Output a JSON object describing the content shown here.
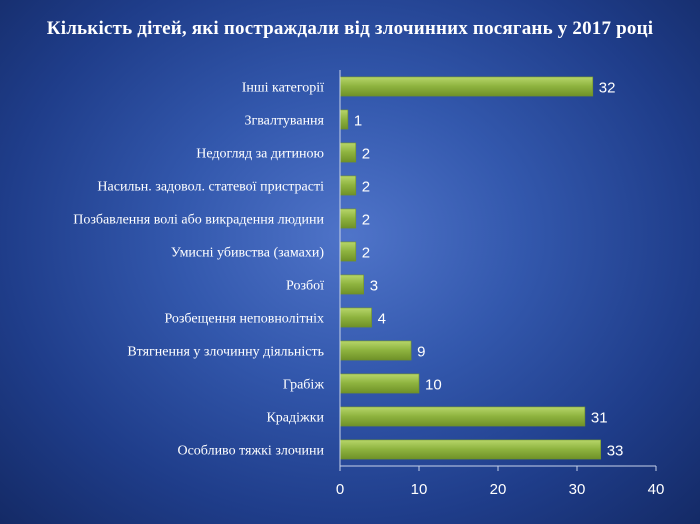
{
  "chart_data": {
    "type": "bar",
    "orientation": "horizontal",
    "title": "Кількість дітей, які постраждали від злочинних посягань у 2017 році",
    "categories": [
      "Інші категорії",
      "Згвалтування",
      "Недогляд за дитиною",
      "Насильн.  задовол. статевої пристрасті",
      "Позбавлення волі або викрадення людини",
      "Умисні убивства (замахи)",
      "Розбої",
      "Розбещення неповнолітніх",
      "Втягнення у злочинну діяльність",
      "Грабіж",
      "Крадіжки",
      "Особливо тяжкі злочини"
    ],
    "values": [
      32,
      1,
      2,
      2,
      2,
      2,
      3,
      4,
      9,
      10,
      31,
      33
    ],
    "xlim": [
      0,
      40
    ],
    "xticks": [
      "0",
      "10",
      "20",
      "30",
      "40"
    ],
    "data_labels": true,
    "grid": false,
    "bar_color": "#8db23e"
  }
}
